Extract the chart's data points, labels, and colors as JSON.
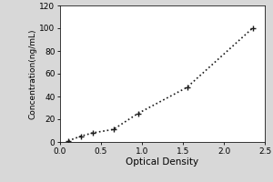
{
  "x": [
    0.1,
    0.25,
    0.4,
    0.65,
    0.95,
    1.55,
    2.35
  ],
  "y": [
    1.0,
    5.0,
    8.0,
    11.0,
    25.0,
    48.0,
    100.0
  ],
  "xlabel": "Optical Density",
  "ylabel": "Concentration(ng/mL)",
  "xlim": [
    0,
    2.5
  ],
  "ylim": [
    0,
    120
  ],
  "xticks": [
    0,
    0.5,
    1,
    1.5,
    2,
    2.5
  ],
  "yticks": [
    0,
    20,
    40,
    60,
    80,
    100,
    120
  ],
  "line_color": "#1a1a1a",
  "marker": "+",
  "marker_size": 5,
  "line_style": ":",
  "line_width": 1.2,
  "marker_color": "#1a1a1a",
  "plot_bg_color": "#ffffff",
  "fig_bg_color": "#d8d8d8",
  "xlabel_fontsize": 7.5,
  "ylabel_fontsize": 6.5,
  "tick_fontsize": 6.5
}
